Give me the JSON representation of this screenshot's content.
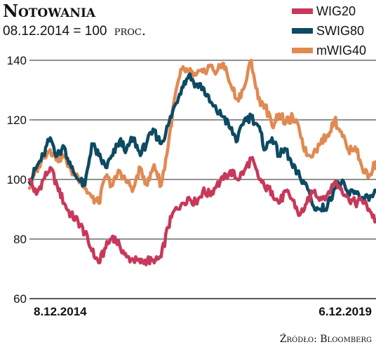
{
  "title": "Notowania",
  "subtitle": "08.12.2014 = 100",
  "subtitle_unit": "proc.",
  "source": "Źródło: Bloomberg",
  "colors": {
    "WIG20": "#c8385a",
    "SWIG80": "#0d4a63",
    "mWIG40": "#e08a52",
    "grid": "#222222"
  },
  "chart_data": {
    "type": "line",
    "title": "Notowania",
    "subtitle": "08.12.2014 = 100 proc.",
    "xlabel": "",
    "ylabel": "",
    "ylim": [
      60,
      140
    ],
    "yticks": [
      60,
      80,
      100,
      120,
      140
    ],
    "grid": true,
    "legend_position": "top-right",
    "x_start_label": "8.12.2014",
    "x_end_label": "6.12.2019",
    "x": [
      0,
      0.1,
      0.2,
      0.3,
      0.4,
      0.5,
      0.6,
      0.7,
      0.8,
      0.9,
      1.0,
      1.1,
      1.2,
      1.3,
      1.4,
      1.5,
      1.6,
      1.7,
      1.8,
      1.9,
      2.0,
      2.1,
      2.2,
      2.3,
      2.4,
      2.5,
      2.6,
      2.7,
      2.8,
      2.9,
      3.0,
      3.1,
      3.2,
      3.3,
      3.4,
      3.5,
      3.6,
      3.7,
      3.8,
      3.9,
      4.0,
      4.1,
      4.2,
      4.3,
      4.4,
      4.5,
      4.6,
      4.7,
      4.8,
      4.9,
      5.0
    ],
    "series": [
      {
        "name": "WIG20",
        "values": [
          100,
          95,
          100,
          104,
          98,
          92,
          88,
          86,
          82,
          76,
          72,
          77,
          81,
          78,
          74,
          73,
          72,
          73,
          72,
          74,
          84,
          90,
          92,
          94,
          92,
          96,
          95,
          98,
          100,
          103,
          100,
          103,
          107,
          101,
          97,
          96,
          92,
          96,
          93,
          88,
          92,
          96,
          94,
          95,
          99,
          97,
          94,
          92,
          93,
          90,
          86
        ]
      },
      {
        "name": "SWIG80",
        "values": [
          99,
          104,
          108,
          114,
          108,
          111,
          104,
          100,
          98,
          112,
          108,
          104,
          108,
          113,
          110,
          114,
          108,
          113,
          116,
          112,
          118,
          125,
          131,
          135,
          132,
          131,
          126,
          123,
          121,
          117,
          113,
          120,
          121,
          118,
          110,
          114,
          108,
          110,
          104,
          101,
          98,
          91,
          90,
          91,
          97,
          99,
          95,
          96,
          94,
          93,
          96
        ]
      },
      {
        "name": "mWIG40",
        "values": [
          97,
          103,
          108,
          110,
          107,
          108,
          103,
          101,
          97,
          94,
          92,
          101,
          98,
          103,
          99,
          97,
          104,
          98,
          105,
          98,
          111,
          128,
          137,
          136,
          135,
          136,
          138,
          136,
          139,
          132,
          127,
          131,
          140,
          127,
          125,
          118,
          122,
          119,
          121,
          116,
          108,
          109,
          112,
          115,
          120,
          116,
          110,
          111,
          104,
          101,
          106
        ]
      }
    ]
  }
}
